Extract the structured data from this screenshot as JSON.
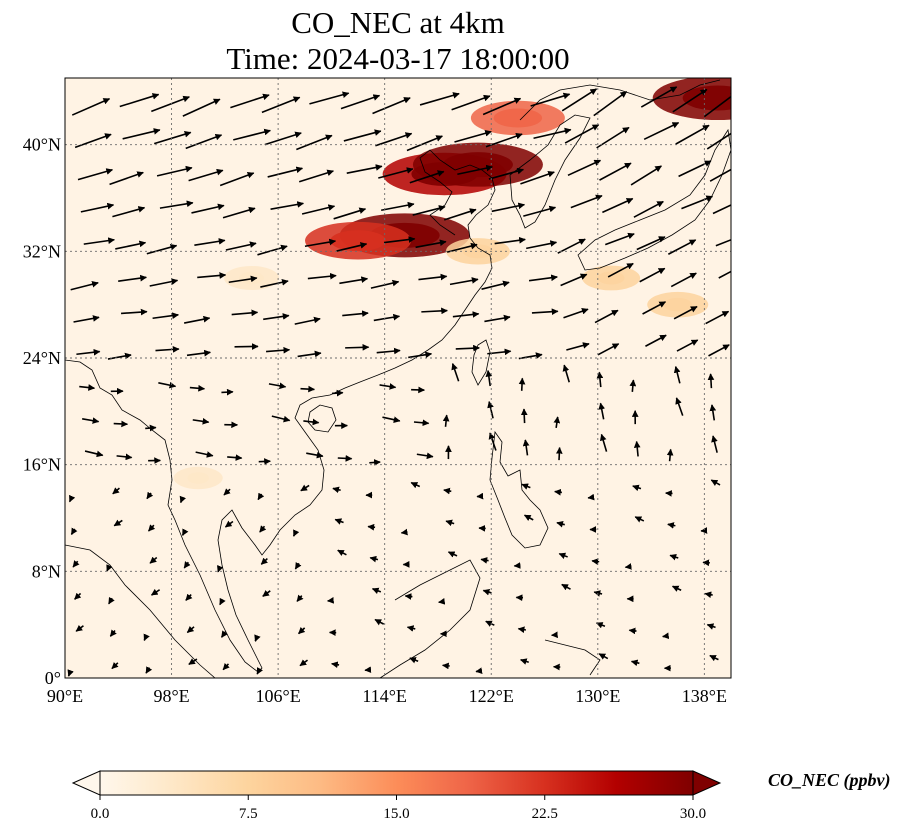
{
  "title": {
    "line1": "CO_NEC at 4km",
    "line2": "Time: 2024-03-17 18:00:00"
  },
  "map": {
    "projection": "PlateCarree",
    "extent": {
      "lon": [
        90,
        140
      ],
      "lat": [
        0,
        45
      ]
    },
    "gridlines": "dotted",
    "coastlines": true,
    "borders": true,
    "lon_ticks": [
      {
        "value": 90,
        "label": "90°E"
      },
      {
        "value": 98,
        "label": "98°E"
      },
      {
        "value": 106,
        "label": "106°E"
      },
      {
        "value": 114,
        "label": "114°E"
      },
      {
        "value": 122,
        "label": "122°E"
      },
      {
        "value": 130,
        "label": "130°E"
      },
      {
        "value": 138,
        "label": "138°E"
      }
    ],
    "lat_ticks": [
      {
        "value": 0,
        "label": "0°"
      },
      {
        "value": 8,
        "label": "8°N"
      },
      {
        "value": 16,
        "label": "16°N"
      },
      {
        "value": 24,
        "label": "24°N"
      },
      {
        "value": 32,
        "label": "32°N"
      },
      {
        "value": 40,
        "label": "40°N"
      }
    ],
    "field": {
      "variable": "CO_NEC",
      "plumes": [
        {
          "lon": 115.5,
          "lat": 33.2,
          "value": 30
        },
        {
          "lon": 112.0,
          "lat": 32.8,
          "value": 22
        },
        {
          "lon": 118.5,
          "lat": 37.8,
          "value": 28
        },
        {
          "lon": 121.0,
          "lat": 38.5,
          "value": 30
        },
        {
          "lon": 124.0,
          "lat": 42.0,
          "value": 18
        },
        {
          "lon": 139.0,
          "lat": 43.5,
          "value": 30
        },
        {
          "lon": 121.0,
          "lat": 32.0,
          "value": 8
        },
        {
          "lon": 131.0,
          "lat": 30.0,
          "value": 6
        },
        {
          "lon": 136.0,
          "lat": 28.0,
          "value": 7
        },
        {
          "lon": 104.0,
          "lat": 30.0,
          "value": 5
        },
        {
          "lon": 100.0,
          "lat": 15.0,
          "value": 3
        }
      ]
    },
    "wind": {
      "description": "arrows show wind direction at 4km; strong westerlies north of 24N, weak flow south"
    }
  },
  "colorbar": {
    "cmap": "OrRd",
    "min": 0.0,
    "max": 30.0,
    "extend": "both",
    "ticks": [
      "0.0",
      "7.5",
      "15.0",
      "22.5",
      "30.0"
    ],
    "label": "CO_NEC (ppbv)"
  }
}
